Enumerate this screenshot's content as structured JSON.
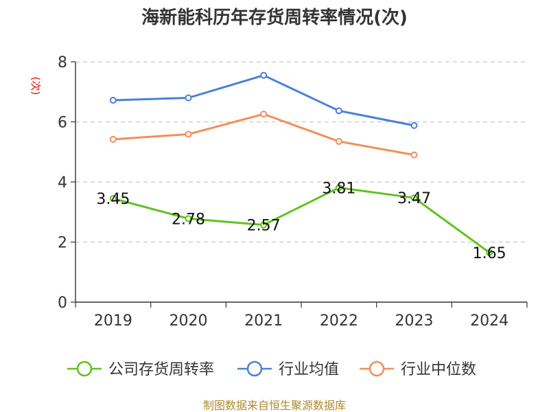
{
  "title": "海新能科历年存货周转率情况(次)",
  "source": "制图数据来自恒生聚源数据库",
  "chart_data": {
    "type": "line",
    "title": "海新能科历年存货周转率情况(次)",
    "xlabel": "",
    "ylabel": "(次)",
    "categories": [
      "2019",
      "2020",
      "2021",
      "2022",
      "2023",
      "2024"
    ],
    "ylim": [
      0,
      8
    ],
    "yticks": [
      "0",
      "2",
      "4",
      "6",
      "8"
    ],
    "grid": true,
    "legend_position": "bottom",
    "series": [
      {
        "name": "公司存货周转率",
        "color": "#5ec21e",
        "values": [
          3.45,
          2.78,
          2.57,
          3.81,
          3.47,
          1.65
        ],
        "labels": [
          "3.45",
          "2.78",
          "2.57",
          "3.81",
          "3.47",
          "1.65"
        ]
      },
      {
        "name": "行业均值",
        "color": "#4a7fdc",
        "values": [
          6.72,
          6.8,
          7.55,
          6.37,
          5.88,
          null
        ]
      },
      {
        "name": "行业中位数",
        "color": "#f28e5b",
        "values": [
          5.42,
          5.59,
          6.26,
          5.35,
          4.9,
          null
        ]
      }
    ]
  }
}
